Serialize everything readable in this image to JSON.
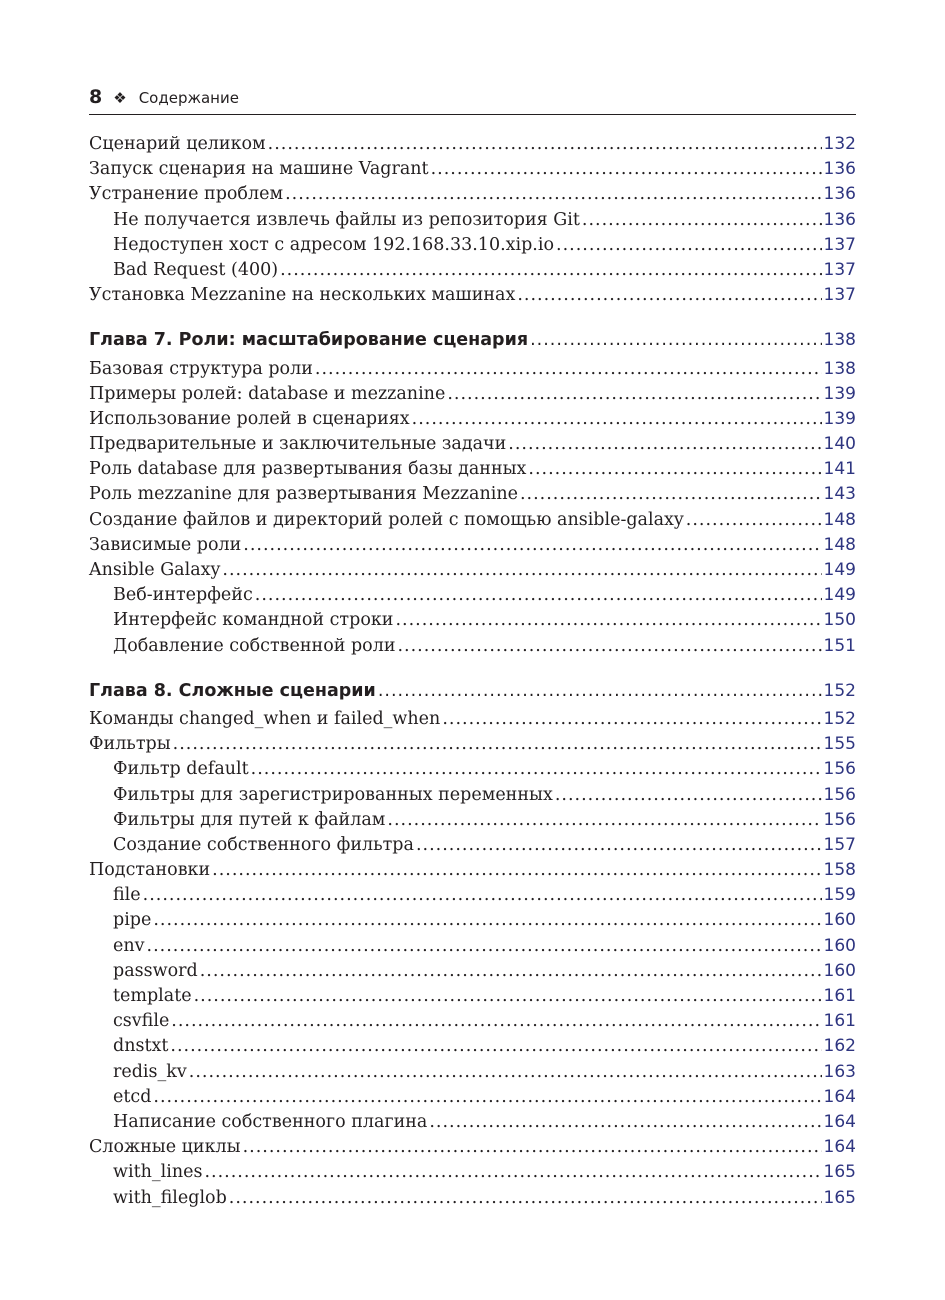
{
  "header": {
    "page_number": "8",
    "ornament": "❖",
    "title": "Содержание"
  },
  "accent_color": "#2e3580",
  "entries": [
    {
      "level": 1,
      "title": "Сценарий целиком",
      "page": "132"
    },
    {
      "level": 1,
      "title": "Запуск сценария на машине Vagrant",
      "page": "136"
    },
    {
      "level": 1,
      "title": "Устранение проблем",
      "page": "136"
    },
    {
      "level": 2,
      "title": "Не получается извлечь файлы из репозитория Git",
      "page": "136"
    },
    {
      "level": 2,
      "title": "Недоступен хост с адресом 192.168.33.10.xip.io",
      "page": "137"
    },
    {
      "level": 2,
      "title": "Bad Request (400)",
      "page": "137"
    },
    {
      "level": 1,
      "title": "Установка Mezzanine на нескольких машинах",
      "page": "137"
    },
    {
      "level": 0,
      "title": "Глава 7. Роли: масштабирование сценария",
      "page": "138"
    },
    {
      "level": 1,
      "title": "Базовая структура роли",
      "page": "138"
    },
    {
      "level": 1,
      "title": "Примеры ролей: database и mezzanine",
      "page": "139"
    },
    {
      "level": 1,
      "title": "Использование ролей в сценариях",
      "page": "139"
    },
    {
      "level": 1,
      "title": "Предварительные и заключительные задачи",
      "page": "140"
    },
    {
      "level": 1,
      "title": "Роль database для развертывания базы данных",
      "page": "141"
    },
    {
      "level": 1,
      "title": "Роль mezzanine для развертывания Mezzanine",
      "page": "143"
    },
    {
      "level": 1,
      "title": "Создание файлов и директорий ролей с помощью ansible-galaxy",
      "page": "148"
    },
    {
      "level": 1,
      "title": "Зависимые роли",
      "page": "148"
    },
    {
      "level": 1,
      "title": "Ansible Galaxy",
      "page": "149"
    },
    {
      "level": 2,
      "title": "Веб-интерфейс",
      "page": "149"
    },
    {
      "level": 2,
      "title": "Интерфейс командной строки",
      "page": "150"
    },
    {
      "level": 2,
      "title": "Добавление собственной роли",
      "page": "151"
    },
    {
      "level": 0,
      "title": "Глава 8. Сложные сценарии",
      "page": "152"
    },
    {
      "level": 1,
      "title": "Команды changed_when и failed_when",
      "page": "152"
    },
    {
      "level": 1,
      "title": "Фильтры",
      "page": "155"
    },
    {
      "level": 2,
      "title": "Фильтр default",
      "page": "156"
    },
    {
      "level": 2,
      "title": "Фильтры для зарегистрированных переменных",
      "page": "156"
    },
    {
      "level": 2,
      "title": "Фильтры для путей к файлам",
      "page": "156"
    },
    {
      "level": 2,
      "title": "Создание собственного фильтра",
      "page": "157"
    },
    {
      "level": 1,
      "title": "Подстановки",
      "page": "158"
    },
    {
      "level": 2,
      "title": "file",
      "page": "159"
    },
    {
      "level": 2,
      "title": "pipe",
      "page": "160"
    },
    {
      "level": 2,
      "title": "env",
      "page": "160"
    },
    {
      "level": 2,
      "title": "password",
      "page": "160"
    },
    {
      "level": 2,
      "title": "template",
      "page": "161"
    },
    {
      "level": 2,
      "title": "csvfile",
      "page": "161"
    },
    {
      "level": 2,
      "title": "dnstxt",
      "page": "162"
    },
    {
      "level": 2,
      "title": "redis_kv",
      "page": "163"
    },
    {
      "level": 2,
      "title": "etcd",
      "page": "164"
    },
    {
      "level": 2,
      "title": "Написание собственного плагина",
      "page": "164"
    },
    {
      "level": 1,
      "title": "Сложные циклы",
      "page": "164"
    },
    {
      "level": 2,
      "title": "with_lines",
      "page": "165"
    },
    {
      "level": 2,
      "title": "with_fileglob",
      "page": "165"
    }
  ]
}
